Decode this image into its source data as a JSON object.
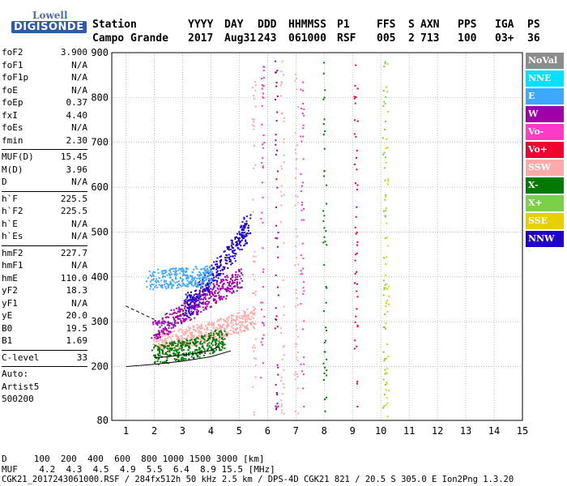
{
  "logo": {
    "line1": "Lowell",
    "line2": "DIGISONDE"
  },
  "header": {
    "row1": [
      "Station",
      "YYYY",
      "DAY",
      "DDD",
      "HHMMSS",
      "P1",
      "FFS",
      "S",
      "AXN",
      "PPS",
      "IGA",
      "PS"
    ],
    "row2": [
      "Campo Grande",
      "2017",
      "Aug31",
      "243",
      "061000",
      "RSF",
      "005",
      "2",
      "713",
      "100",
      "03+",
      "36"
    ]
  },
  "params": [
    {
      "k": "foF2",
      "v": "3.900"
    },
    {
      "k": "foF1",
      "v": "N/A"
    },
    {
      "k": "foF1p",
      "v": "N/A"
    },
    {
      "k": "foE",
      "v": "N/A"
    },
    {
      "k": "foEp",
      "v": "0.37"
    },
    {
      "k": "fxI",
      "v": "4.40"
    },
    {
      "k": "foEs",
      "v": "N/A"
    },
    {
      "k": "fmin",
      "v": "2.30"
    },
    {
      "sep": true
    },
    {
      "k": "MUF(D)",
      "v": "15.45"
    },
    {
      "k": "M(D)",
      "v": "3.96"
    },
    {
      "k": "D",
      "v": "N/A"
    },
    {
      "sep": true
    },
    {
      "k": "h`F",
      "v": "225.5"
    },
    {
      "k": "h`F2",
      "v": "225.5"
    },
    {
      "k": "h`E",
      "v": "N/A"
    },
    {
      "k": "h`Es",
      "v": "N/A"
    },
    {
      "sep": true
    },
    {
      "k": "hmF2",
      "v": "227.7"
    },
    {
      "k": "hmF1",
      "v": "N/A"
    },
    {
      "k": "hmE",
      "v": "110.0"
    },
    {
      "k": "yF2",
      "v": "18.3"
    },
    {
      "k": "yF1",
      "v": "N/A"
    },
    {
      "k": "yE",
      "v": "20.0"
    },
    {
      "k": "B0",
      "v": "19.5"
    },
    {
      "k": "B1",
      "v": "1.69"
    },
    {
      "sep": true
    },
    {
      "k": "C-level",
      "v": "33"
    },
    {
      "sep": true
    },
    {
      "k": "Auto:",
      "v": ""
    },
    {
      "k": "Artist5",
      "v": ""
    },
    {
      "k": "500200",
      "v": ""
    }
  ],
  "footer": {
    "d_row": "D     100  200  400  600  800 1000 1500 3000 [km]",
    "muf_row": "MUF    4.2  4.3  4.5  4.9  5.5  6.4  8.9 15.5 [MHz]",
    "file_row": "CGK21_2017243061000.RSF / 284fx512h 50 kHz 2.5 km / DPS-4D CGK21 821 / 20.5 S 305.0 E Ion2Png 1.3.20"
  },
  "legend": [
    {
      "label": "NoVal",
      "color": "#8c8c8c"
    },
    {
      "label": "NNE",
      "color": "#00e0ff"
    },
    {
      "label": "E",
      "color": "#3ea8ff"
    },
    {
      "label": "W",
      "color": "#a000a8"
    },
    {
      "label": "Vo-",
      "color": "#ff3ac8"
    },
    {
      "label": "Vo+",
      "color": "#f00030"
    },
    {
      "label": "SSW",
      "color": "#ffaaaa"
    },
    {
      "label": "X-",
      "color": "#007a00"
    },
    {
      "label": "X+",
      "color": "#7ccf48"
    },
    {
      "label": "SSE",
      "color": "#e8d000"
    },
    {
      "label": "NNW",
      "color": "#2000c8"
    }
  ],
  "chart_data": {
    "type": "scatter",
    "xlabel": "",
    "ylabel": "",
    "xlim": [
      0.5,
      15
    ],
    "ylim": [
      80,
      900
    ],
    "x_ticks": [
      1,
      2,
      3,
      4,
      5,
      6,
      7,
      8,
      9,
      10,
      11,
      12,
      13,
      14,
      15
    ],
    "y_ticks": [
      80,
      200,
      300,
      400,
      500,
      600,
      700,
      800,
      900
    ],
    "grid": true,
    "legend_position": "right",
    "description_series": [
      {
        "name": "SSW",
        "x": [
          2.0,
          2.5,
          3.0,
          3.5,
          4.0,
          4.5,
          5.0,
          5.5
        ],
        "y": [
          250,
          258,
          265,
          272,
          280,
          290,
          300,
          310
        ]
      },
      {
        "name": "W",
        "x": [
          2.0,
          2.5,
          3.0,
          3.5,
          4.0,
          4.5,
          5.0
        ],
        "y": [
          280,
          300,
          320,
          340,
          360,
          380,
          400
        ]
      },
      {
        "name": "NNW",
        "x": [
          3.0,
          3.5,
          4.0,
          4.5,
          5.0,
          5.3
        ],
        "y": [
          330,
          360,
          400,
          440,
          480,
          520
        ]
      },
      {
        "name": "E",
        "x": [
          1.8,
          2.5,
          3.0,
          3.5,
          4.0
        ],
        "y": [
          395,
          398,
          400,
          402,
          405
        ]
      },
      {
        "name": "X-",
        "x": [
          2.0,
          2.5,
          3.0,
          3.5,
          4.0,
          4.5
        ],
        "y": [
          228,
          232,
          238,
          245,
          255,
          265
        ]
      }
    ],
    "traces": [
      {
        "name": "trace-1",
        "x": [
          2.0,
          2.5,
          3.0,
          3.5,
          4.0,
          4.3
        ],
        "y": [
          220,
          222,
          226,
          230,
          236,
          245
        ]
      },
      {
        "name": "trace-2",
        "x": [
          1.0,
          2.0,
          3.0,
          4.0,
          4.7
        ],
        "y": [
          200,
          205,
          212,
          222,
          235
        ]
      },
      {
        "name": "trace-3",
        "x": [
          1.0,
          1.5,
          2.0
        ],
        "y": [
          335,
          320,
          305
        ]
      }
    ]
  }
}
